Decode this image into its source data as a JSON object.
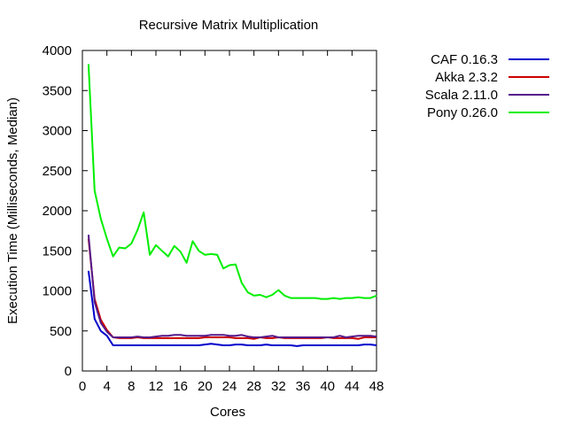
{
  "chart_data": {
    "type": "line",
    "title": "Recursive Matrix Multiplication",
    "xlabel": "Cores",
    "ylabel": "Execution Time (Milliseconds, Median)",
    "xlim": [
      0,
      48
    ],
    "ylim": [
      0,
      4000
    ],
    "xticks": [
      0,
      4,
      8,
      12,
      16,
      20,
      24,
      28,
      32,
      36,
      40,
      44,
      48
    ],
    "yticks": [
      0,
      500,
      1000,
      1500,
      2000,
      2500,
      3000,
      3500,
      4000
    ],
    "grid": false,
    "legend_position": "top-right-outside",
    "series": [
      {
        "name": "CAF 0.16.3",
        "color": "#0000cc",
        "x": [
          1,
          2,
          3,
          4,
          5,
          6,
          7,
          8,
          9,
          10,
          11,
          12,
          13,
          14,
          15,
          16,
          17,
          18,
          19,
          20,
          21,
          22,
          23,
          24,
          25,
          26,
          27,
          28,
          29,
          30,
          31,
          32,
          33,
          34,
          35,
          36,
          37,
          38,
          39,
          40,
          41,
          42,
          43,
          44,
          45,
          46,
          47,
          48
        ],
        "y": [
          1250,
          650,
          500,
          440,
          320,
          320,
          320,
          320,
          320,
          320,
          320,
          320,
          320,
          320,
          320,
          320,
          320,
          320,
          320,
          330,
          340,
          330,
          320,
          320,
          330,
          330,
          320,
          320,
          320,
          330,
          320,
          320,
          320,
          320,
          310,
          320,
          320,
          320,
          320,
          320,
          320,
          320,
          320,
          320,
          320,
          330,
          330,
          320
        ]
      },
      {
        "name": "Akka 2.3.2",
        "color": "#cc0000",
        "x": [
          1,
          2,
          3,
          4,
          5,
          6,
          7,
          8,
          9,
          10,
          11,
          12,
          13,
          14,
          15,
          16,
          17,
          18,
          19,
          20,
          21,
          22,
          23,
          24,
          25,
          26,
          27,
          28,
          29,
          30,
          31,
          32,
          33,
          34,
          35,
          36,
          37,
          38,
          39,
          40,
          41,
          42,
          43,
          44,
          45,
          46,
          47,
          48
        ],
        "y": [
          1650,
          900,
          640,
          510,
          420,
          410,
          410,
          410,
          420,
          410,
          410,
          410,
          410,
          410,
          410,
          410,
          410,
          410,
          410,
          420,
          420,
          420,
          420,
          420,
          410,
          410,
          410,
          400,
          420,
          410,
          410,
          420,
          410,
          410,
          410,
          410,
          410,
          410,
          410,
          420,
          410,
          410,
          410,
          410,
          400,
          420,
          420,
          420
        ]
      },
      {
        "name": "Scala 2.11.0",
        "color": "#551a8b",
        "x": [
          1,
          2,
          3,
          4,
          5,
          6,
          7,
          8,
          9,
          10,
          11,
          12,
          13,
          14,
          15,
          16,
          17,
          18,
          19,
          20,
          21,
          22,
          23,
          24,
          25,
          26,
          27,
          28,
          29,
          30,
          31,
          32,
          33,
          34,
          35,
          36,
          37,
          38,
          39,
          40,
          41,
          42,
          43,
          44,
          45,
          46,
          47,
          48
        ],
        "y": [
          1700,
          860,
          600,
          490,
          420,
          420,
          420,
          420,
          430,
          420,
          420,
          430,
          440,
          440,
          450,
          450,
          440,
          440,
          440,
          440,
          450,
          450,
          450,
          440,
          440,
          450,
          430,
          420,
          420,
          430,
          440,
          420,
          420,
          420,
          420,
          420,
          420,
          420,
          420,
          420,
          420,
          440,
          420,
          430,
          440,
          440,
          440,
          430
        ]
      },
      {
        "name": "Pony 0.26.0",
        "color": "#00ee00",
        "x": [
          1,
          2,
          3,
          4,
          5,
          6,
          7,
          8,
          9,
          10,
          11,
          12,
          13,
          14,
          15,
          16,
          17,
          18,
          19,
          20,
          21,
          22,
          23,
          24,
          25,
          26,
          27,
          28,
          29,
          30,
          31,
          32,
          33,
          34,
          35,
          36,
          37,
          38,
          39,
          40,
          41,
          42,
          43,
          44,
          45,
          46,
          47,
          48
        ],
        "y": [
          3830,
          2250,
          1900,
          1650,
          1430,
          1540,
          1530,
          1590,
          1760,
          1980,
          1450,
          1570,
          1500,
          1430,
          1560,
          1490,
          1350,
          1620,
          1500,
          1450,
          1460,
          1450,
          1280,
          1320,
          1330,
          1100,
          980,
          940,
          950,
          920,
          950,
          1010,
          940,
          910,
          910,
          910,
          910,
          910,
          900,
          900,
          910,
          900,
          910,
          910,
          920,
          910,
          910,
          940
        ]
      }
    ]
  }
}
